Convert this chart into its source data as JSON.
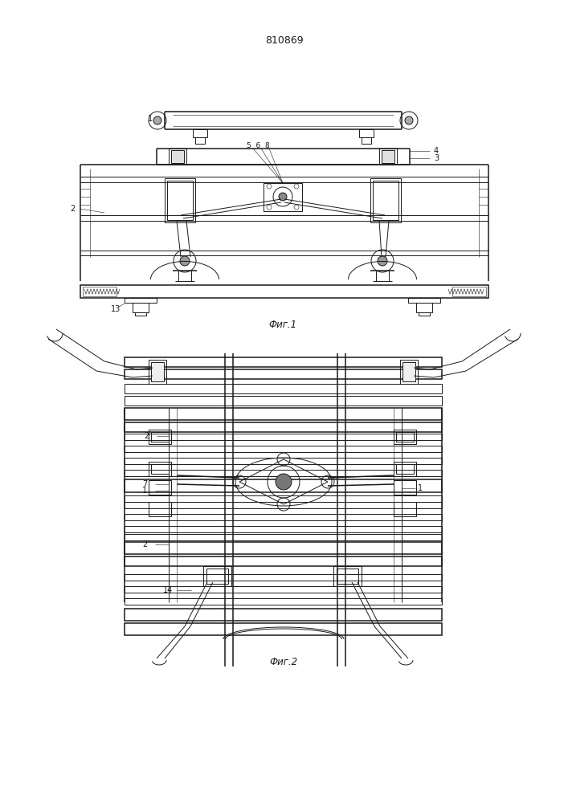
{
  "patent_number": "810869",
  "fig1_caption": "Фиг.1",
  "fig2_caption": "Фиг.2",
  "bg_color": "#ffffff",
  "line_color": "#1a1a1a",
  "lw": 0.7,
  "tlw": 0.4,
  "thk": 1.1
}
